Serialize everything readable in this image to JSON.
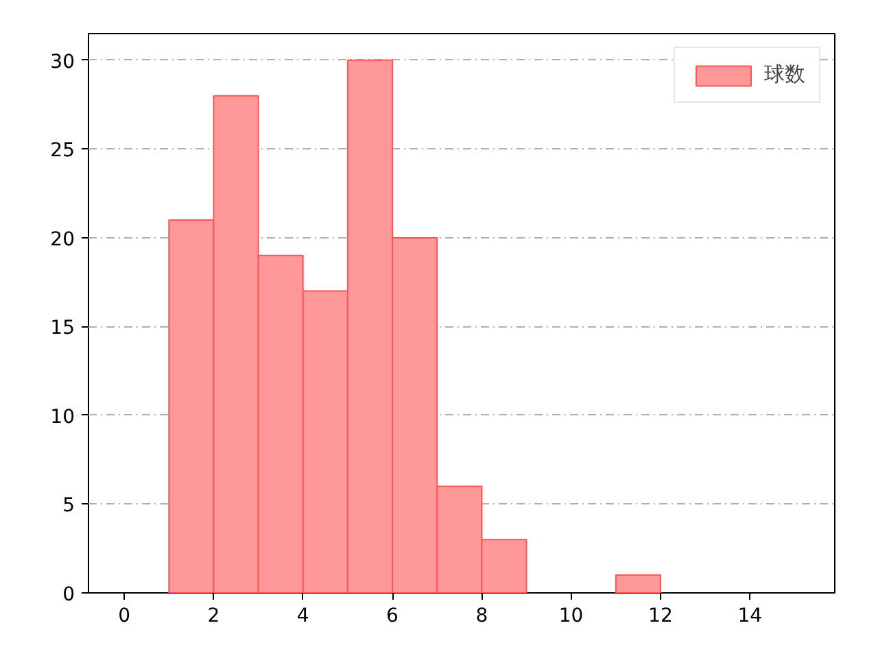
{
  "chart_data": {
    "type": "histogram",
    "bins": [
      1,
      2,
      3,
      4,
      5,
      6,
      7,
      8,
      9,
      10,
      11,
      12
    ],
    "series": [
      {
        "name": "球数",
        "color": "#ff9999",
        "values": [
          21,
          28,
          19,
          17,
          30,
          20,
          6,
          3,
          0,
          0,
          1
        ]
      }
    ],
    "xlim": [
      -0.8,
      15.9
    ],
    "xticks": [
      0,
      2,
      4,
      6,
      8,
      10,
      12,
      14
    ],
    "ylim": [
      0,
      31.5
    ],
    "yticks": [
      0,
      5,
      10,
      15,
      20,
      25,
      30
    ],
    "grid": "y",
    "legend": "top right"
  }
}
